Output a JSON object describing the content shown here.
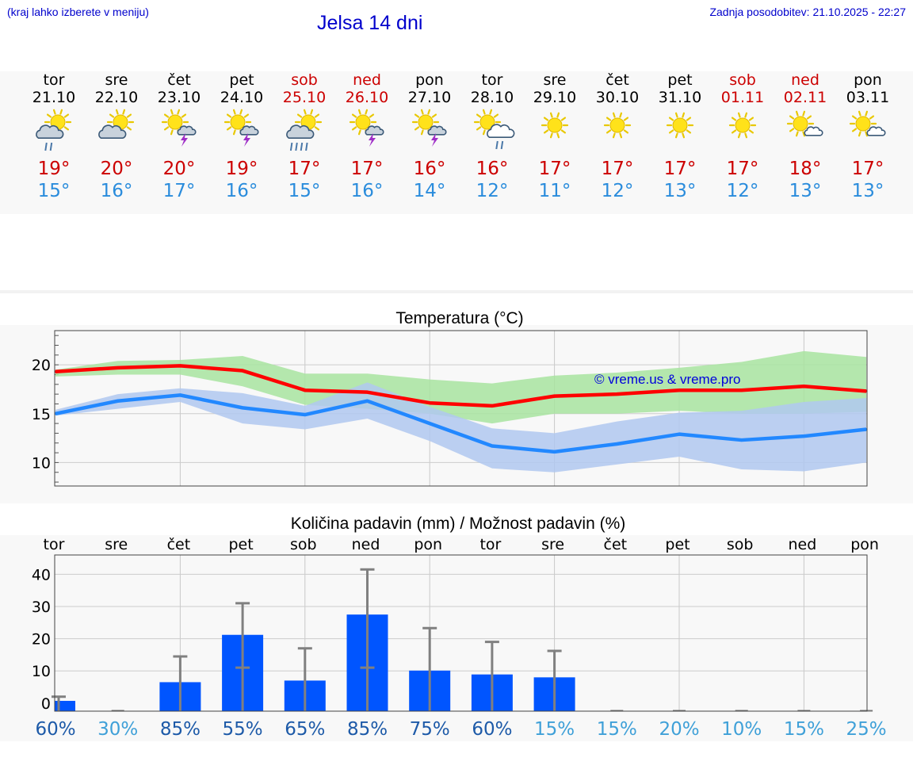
{
  "header": {
    "menu_hint": "(kraj lahko izberete v meniju)",
    "title": "Jelsa 14 dni",
    "last_update": "Zadnja posodobitev: 21.10.2025 - 22:27"
  },
  "colors": {
    "link_blue": "#0000cc",
    "weekend_red": "#cc0000",
    "tmax_red": "#cc0000",
    "tmin_blue": "#2a8cdc",
    "temp_max_line": "#ff0000",
    "temp_min_line": "#2288ff",
    "max_band": "#a8e4a0",
    "min_band": "#b0c8f0",
    "bar_blue": "#0055ff",
    "error_bar": "#808080",
    "pct_dark": "#1d5aa8",
    "pct_light": "#3fa0d8"
  },
  "forecast": {
    "days": [
      {
        "dow": "tor",
        "date": "21.10",
        "weekend": false,
        "icon": "sun-cloud-rain-icon",
        "tmax": "19°",
        "tmin": "15°"
      },
      {
        "dow": "sre",
        "date": "22.10",
        "weekend": false,
        "icon": "sun-cloud-icon",
        "tmax": "20°",
        "tmin": "16°"
      },
      {
        "dow": "čet",
        "date": "23.10",
        "weekend": false,
        "icon": "sun-storm-icon",
        "tmax": "20°",
        "tmin": "17°"
      },
      {
        "dow": "pet",
        "date": "24.10",
        "weekend": false,
        "icon": "sun-storm-icon",
        "tmax": "19°",
        "tmin": "16°"
      },
      {
        "dow": "sob",
        "date": "25.10",
        "weekend": true,
        "icon": "sun-cloud-heavy-rain-icon",
        "tmax": "17°",
        "tmin": "15°"
      },
      {
        "dow": "ned",
        "date": "26.10",
        "weekend": true,
        "icon": "sun-storm-icon",
        "tmax": "17°",
        "tmin": "16°"
      },
      {
        "dow": "pon",
        "date": "27.10",
        "weekend": false,
        "icon": "sun-storm-icon",
        "tmax": "16°",
        "tmin": "14°"
      },
      {
        "dow": "tor",
        "date": "28.10",
        "weekend": false,
        "icon": "sun-white-cloud-rain-icon",
        "tmax": "16°",
        "tmin": "12°"
      },
      {
        "dow": "sre",
        "date": "29.10",
        "weekend": false,
        "icon": "sun-icon",
        "tmax": "17°",
        "tmin": "11°"
      },
      {
        "dow": "čet",
        "date": "30.10",
        "weekend": false,
        "icon": "sun-icon",
        "tmax": "17°",
        "tmin": "12°"
      },
      {
        "dow": "pet",
        "date": "31.10",
        "weekend": false,
        "icon": "sun-icon",
        "tmax": "17°",
        "tmin": "13°"
      },
      {
        "dow": "sob",
        "date": "01.11",
        "weekend": true,
        "icon": "sun-icon",
        "tmax": "17°",
        "tmin": "12°"
      },
      {
        "dow": "ned",
        "date": "02.11",
        "weekend": true,
        "icon": "sun-small-cloud-icon",
        "tmax": "18°",
        "tmin": "13°"
      },
      {
        "dow": "pon",
        "date": "03.11",
        "weekend": false,
        "icon": "sun-small-cloud-icon",
        "tmax": "17°",
        "tmin": "13°"
      }
    ]
  },
  "chart_data": [
    {
      "type": "line",
      "title": "Temperatura (°C)",
      "watermark": "© vreme.us & vreme.pro",
      "x": [
        "21.10",
        "22.10",
        "23.10",
        "24.10",
        "25.10",
        "26.10",
        "27.10",
        "28.10",
        "29.10",
        "30.10",
        "31.10",
        "01.11",
        "02.11",
        "03.11"
      ],
      "series": [
        {
          "values": [
            19.3,
            19.7,
            19.9,
            19.4,
            17.4,
            17.2,
            16.1,
            15.8,
            16.8,
            17.0,
            17.4,
            17.4,
            17.8,
            17.3
          ],
          "band_low": [
            18.8,
            19.0,
            19.0,
            17.8,
            15.9,
            15.5,
            15.0,
            14.0,
            15.0,
            15.0,
            15.3,
            15.0,
            15.0,
            15.2
          ],
          "band_high": [
            19.5,
            20.4,
            20.5,
            20.9,
            19.1,
            19.1,
            18.5,
            18.1,
            18.9,
            19.2,
            19.7,
            20.3,
            21.4,
            20.8
          ]
        },
        {
          "values": [
            15.0,
            16.3,
            16.9,
            15.6,
            14.9,
            16.3,
            14.0,
            11.7,
            11.1,
            11.9,
            12.9,
            12.3,
            12.7,
            13.4
          ],
          "band_low": [
            14.8,
            15.5,
            16.2,
            14.0,
            13.4,
            14.5,
            12.2,
            9.4,
            9.0,
            9.8,
            10.6,
            9.3,
            9.1,
            10.0
          ],
          "band_high": [
            15.4,
            17.0,
            17.6,
            17.1,
            15.8,
            18.2,
            15.7,
            13.5,
            13.0,
            14.2,
            15.1,
            15.3,
            16.2,
            16.6
          ]
        }
      ],
      "ylim": [
        7.6,
        23.5
      ],
      "yticks": [
        10,
        15,
        20
      ]
    },
    {
      "type": "bar",
      "title": "Količina padavin (mm) / Možnost padavin (%)",
      "categories": [
        "tor",
        "sre",
        "čet",
        "pet",
        "sob",
        "ned",
        "pon",
        "tor",
        "sre",
        "čet",
        "pet",
        "sob",
        "ned",
        "pon"
      ],
      "values": [
        0.7,
        0,
        6.5,
        21.2,
        7,
        27.5,
        10.1,
        8.9,
        8,
        0,
        0,
        0,
        0,
        0
      ],
      "error_high": [
        2,
        0,
        14.5,
        31,
        17,
        41.5,
        23.3,
        19,
        16.2,
        0,
        0,
        0,
        0,
        0
      ],
      "error_low": [
        0,
        0,
        0,
        11,
        0,
        11,
        0,
        0,
        0,
        0,
        0,
        0,
        0,
        0
      ],
      "probability": [
        "60%",
        "30%",
        "85%",
        "55%",
        "65%",
        "85%",
        "75%",
        "60%",
        "15%",
        "15%",
        "20%",
        "10%",
        "15%",
        "25%"
      ],
      "prob_dark": [
        true,
        false,
        true,
        true,
        true,
        true,
        true,
        true,
        false,
        false,
        false,
        false,
        false,
        false
      ],
      "ylim": [
        -2.5,
        46
      ],
      "yticks": [
        0,
        10,
        20,
        30,
        40
      ]
    }
  ]
}
